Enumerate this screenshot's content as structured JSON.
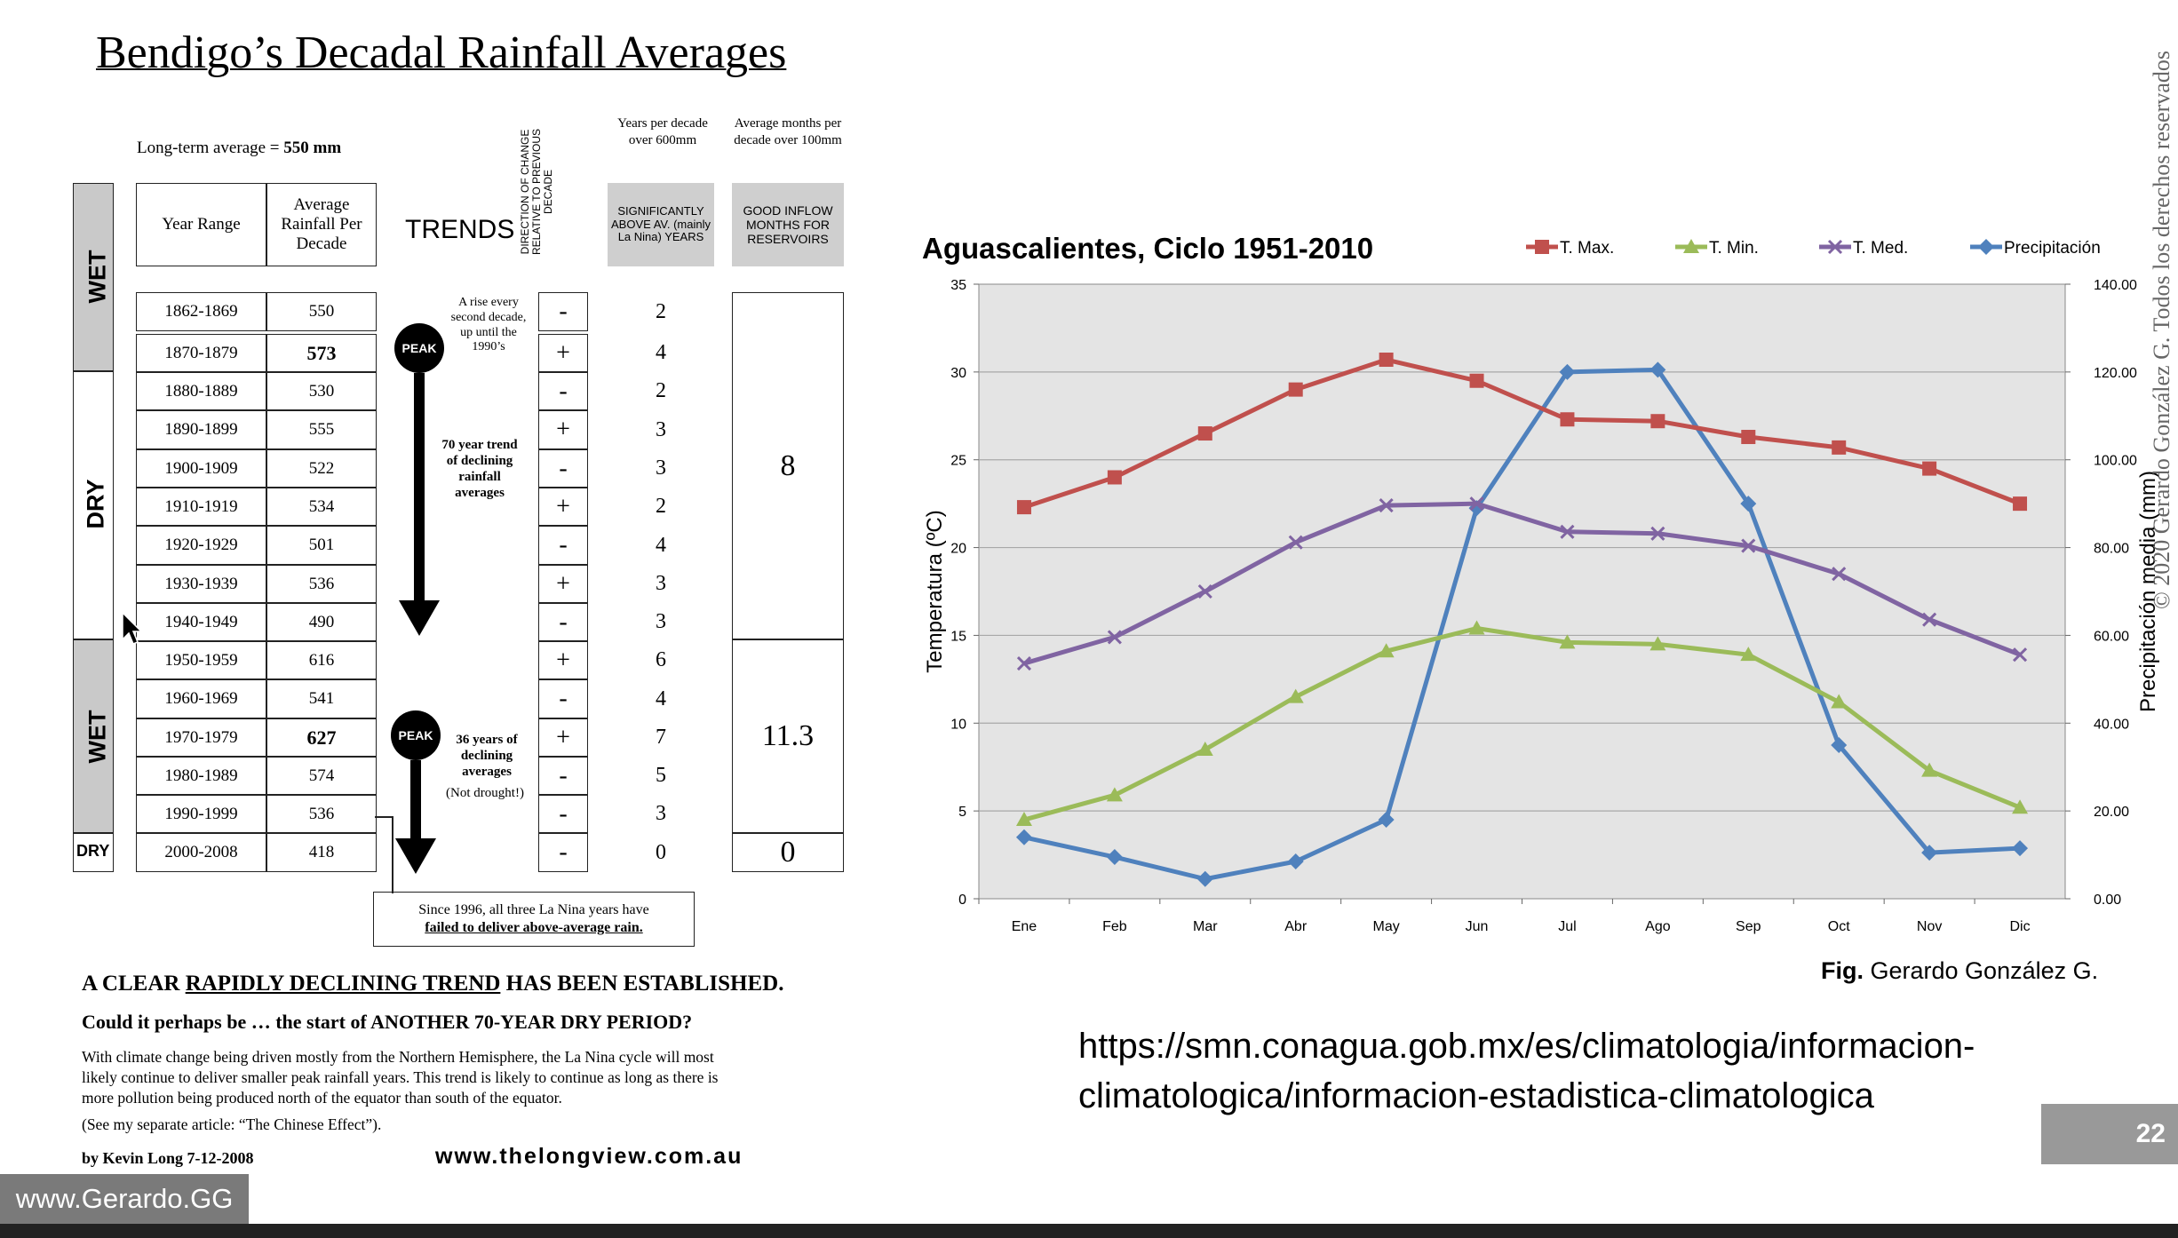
{
  "left": {
    "title": "Bendigo’s Decadal Rainfall Averages",
    "long_term_label": "Long-term average  =",
    "long_term_value": "550 mm",
    "headers": {
      "year_range": "Year Range",
      "average": "Average Rainfall Per Decade",
      "trends": "TRENDS",
      "direction": "DIRECTION OF CHANGE RELATIVE TO PREVIOUS DECADE",
      "years_over_label": "Years per decade over 600mm",
      "years_over_sub": "SIGNIFICANTLY ABOVE AV. (mainly La Nina) YEARS",
      "months_over_label": "Average months per decade over 100mm",
      "months_over_sub": "GOOD INFLOW MONTHS FOR RESERVOIRS"
    },
    "side_labels": [
      "WET",
      "DRY",
      "WET",
      "DRY"
    ],
    "rows": [
      {
        "range": "1862-1869",
        "avg": "550",
        "dir": "-",
        "years": "2",
        "bold": false
      },
      {
        "range": "1870-1879",
        "avg": "573",
        "dir": "+",
        "years": "4",
        "bold": true
      },
      {
        "range": "1880-1889",
        "avg": "530",
        "dir": "-",
        "years": "2",
        "bold": false
      },
      {
        "range": "1890-1899",
        "avg": "555",
        "dir": "+",
        "years": "3",
        "bold": false
      },
      {
        "range": "1900-1909",
        "avg": "522",
        "dir": "-",
        "years": "3",
        "bold": false
      },
      {
        "range": "1910-1919",
        "avg": "534",
        "dir": "+",
        "years": "2",
        "bold": false
      },
      {
        "range": "1920-1929",
        "avg": "501",
        "dir": "-",
        "years": "4",
        "bold": false
      },
      {
        "range": "1930-1939",
        "avg": "536",
        "dir": "+",
        "years": "3",
        "bold": false
      },
      {
        "range": "1940-1949",
        "avg": "490",
        "dir": "-",
        "years": "3",
        "bold": false
      },
      {
        "range": "1950-1959",
        "avg": "616",
        "dir": "+",
        "years": "6",
        "bold": false
      },
      {
        "range": "1960-1969",
        "avg": "541",
        "dir": "-",
        "years": "4",
        "bold": false
      },
      {
        "range": "1970-1979",
        "avg": "627",
        "dir": "+",
        "years": "7",
        "bold": true
      },
      {
        "range": "1980-1989",
        "avg": "574",
        "dir": "-",
        "years": "5",
        "bold": false
      },
      {
        "range": "1990-1999",
        "avg": "536",
        "dir": "-",
        "years": "3",
        "bold": false
      },
      {
        "range": "2000-2008",
        "avg": "418",
        "dir": "-",
        "years": "0",
        "bold": false
      }
    ],
    "months_values": [
      "8",
      "11.3",
      "0"
    ],
    "trend_notes": {
      "rise": "A rise every second decade, up until the 1990’s",
      "peak": "PEAK",
      "seventy": "70 year trend of declining rainfall averages",
      "thirtysix": "36 years of declining averages",
      "not_drought": "(Not drought!)"
    },
    "la_nina_note_1": "Since 1996, all three La Nina years have",
    "la_nina_note_2": "failed to deliver above-average rain.",
    "conclusion_a": "A CLEAR ",
    "conclusion_b": "RAPIDLY DECLINING TREND",
    "conclusion_c": " HAS BEEN ESTABLISHED.",
    "question": "Could it perhaps be … the start of  ANOTHER 70-YEAR DRY PERIOD?",
    "para_1": "With climate change being driven mostly from the Northern Hemisphere, the La Nina cycle will most",
    "para_2": "likely continue to deliver smaller peak rainfall years. This trend is likely to continue as long as there is",
    "para_3": "more pollution being produced north of the equator than south of the equator.",
    "para_4": "(See my separate article: “The Chinese Effect”).",
    "author": "by Kevin Long   7-12-2008",
    "site": "www.thelongview.com.au"
  },
  "chart_data": {
    "type": "line",
    "title": "Aguascalientes, Ciclo 1951-2010",
    "categories": [
      "Ene",
      "Feb",
      "Mar",
      "Abr",
      "May",
      "Jun",
      "Jul",
      "Ago",
      "Sep",
      "Oct",
      "Nov",
      "Dic"
    ],
    "ylabel": "Temperatura (ºC)",
    "y2label": "Precipitación media (mm)",
    "ylim": [
      0,
      35
    ],
    "y2lim": [
      0,
      140
    ],
    "yticks": [
      "0",
      "5",
      "10",
      "15",
      "20",
      "25",
      "30",
      "35"
    ],
    "y2ticks": [
      "0.00",
      "20.00",
      "40.00",
      "60.00",
      "80.00",
      "100.00",
      "120.00",
      "140.00"
    ],
    "grid": true,
    "legend_position": "top-right",
    "series": [
      {
        "name": "T. Max.",
        "color": "#c0504d",
        "marker": "square",
        "axis": "left",
        "values": [
          22.3,
          24.0,
          26.5,
          29.0,
          30.7,
          29.5,
          27.3,
          27.2,
          26.3,
          25.7,
          24.5,
          22.5
        ]
      },
      {
        "name": "T. Min.",
        "color": "#9bbb59",
        "marker": "triangle",
        "axis": "left",
        "values": [
          4.5,
          5.9,
          8.5,
          11.5,
          14.1,
          15.4,
          14.6,
          14.5,
          13.9,
          11.2,
          7.3,
          5.2
        ]
      },
      {
        "name": "T. Med.",
        "color": "#8064a2",
        "marker": "x",
        "axis": "left",
        "values": [
          13.4,
          14.9,
          17.5,
          20.3,
          22.4,
          22.5,
          20.9,
          20.8,
          20.1,
          18.5,
          15.9,
          13.9
        ]
      },
      {
        "name": "Precipitación",
        "color": "#4f81bd",
        "marker": "diamond",
        "axis": "right",
        "values": [
          14.0,
          9.5,
          4.5,
          8.5,
          18.0,
          89.0,
          120.0,
          120.5,
          90.0,
          35.0,
          10.5,
          11.5
        ]
      }
    ]
  },
  "right": {
    "fig_prefix": "Fig.",
    "fig_author": " Gerardo González G.",
    "url_line_1": "https://smn.conagua.gob.mx/es/climatologia/informacion-",
    "url_line_2": "climatologica/informacion-estadistica-climatologica",
    "copyright": "© 2020 Gerardo González G. Todos los derechos reservados",
    "page_number": "22",
    "watermark": "www.Gerardo.GG"
  }
}
